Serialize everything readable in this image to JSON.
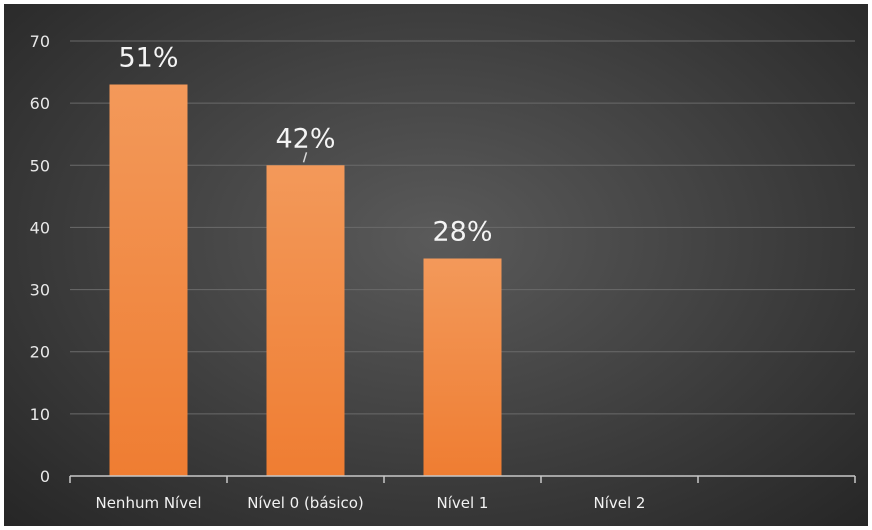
{
  "chart_data": {
    "type": "bar",
    "categories": [
      "Nenhum Nível",
      "Nível 0 (básico)",
      "Nível 1",
      "Nível 2"
    ],
    "values": [
      63,
      50,
      35,
      0
    ],
    "data_labels": [
      "51%",
      "42%",
      "28%",
      ""
    ],
    "title": "",
    "xlabel": "",
    "ylabel": "",
    "ylim": [
      0,
      70
    ],
    "yticks": [
      0,
      10,
      20,
      30,
      40,
      50,
      60,
      70
    ],
    "grid": true,
    "legend": "none",
    "colors": {
      "bar": "#ef7d32",
      "bar_light": "#f3995a",
      "grid": "#6a6a6a",
      "axis": "#c8c8c8",
      "background": "#3e3e3e"
    }
  }
}
